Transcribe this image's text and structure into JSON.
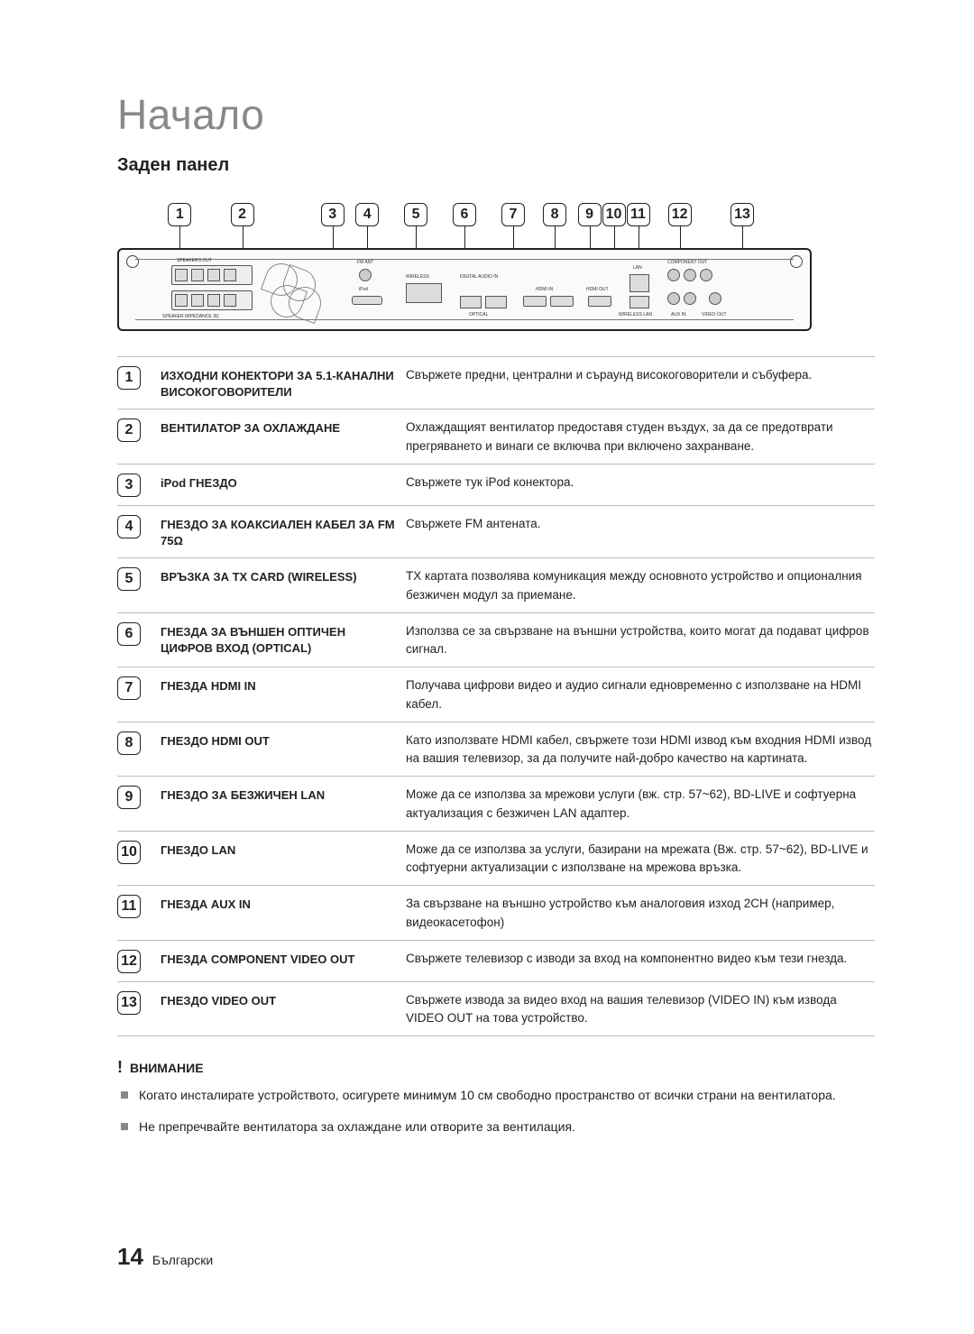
{
  "page": {
    "title": "Начало",
    "section": "Заден панел",
    "page_number": "14",
    "language_label": "Български"
  },
  "colors": {
    "title_color": "#888888",
    "text_color": "#222222",
    "divider_color": "#bdbdbd",
    "box_border": "#222222"
  },
  "diagram": {
    "back_panel_labels": [
      "SPEAKERS OUT",
      "FM ANT",
      "WIRELESS",
      "DIGITAL AUDIO IN",
      "HDMI IN",
      "HDMI OUT",
      "LAN",
      "COMPONENT OUT",
      "WIRELESS LAN",
      "AUX IN",
      "VIDEO OUT",
      "OPTICAL",
      "SPEAKER IMPEDANCE 3Ω",
      "iPod"
    ],
    "callout_numbers": [
      "1",
      "2",
      "3",
      "4",
      "5",
      "6",
      "7",
      "8",
      "9",
      "10",
      "11",
      "12",
      "13"
    ],
    "callout_x_positions_pct": [
      9,
      18,
      31,
      36,
      43,
      50,
      57,
      63,
      68,
      71.5,
      75,
      81,
      90
    ]
  },
  "items": [
    {
      "n": "1",
      "name": "ИЗХОДНИ КОНЕКТОРИ ЗА 5.1-КАНАЛНИ ВИСОКОГОВОРИТЕЛИ",
      "desc": "Свържете предни, централни и съраунд високоговорители и събуфера."
    },
    {
      "n": "2",
      "name": "ВЕНТИЛАТОР ЗА ОХЛАЖДАНЕ",
      "desc": "Охлаждащият вентилатор предоставя студен въздух, за да се предотврати прегряването и винаги се включва при включено захранване."
    },
    {
      "n": "3",
      "name": "iPod ГНЕЗДО",
      "desc": "Свържете тук iPod конектора."
    },
    {
      "n": "4",
      "name": "ГНЕЗДО ЗА КОАКСИАЛЕН КАБЕЛ ЗА FM 75Ω",
      "desc": "Свържете FM антената."
    },
    {
      "n": "5",
      "name": "ВРЪЗКА ЗА TX CARD (WIRELESS)",
      "desc": "TX картата позволява комуникация между основното устройство и опционалния безжичен модул за приемане."
    },
    {
      "n": "6",
      "name": "ГНЕЗДА ЗА ВЪНШЕН ОПТИЧЕН ЦИФРОВ ВХОД (OPTICAL)",
      "desc": "Използва се за свързване на външни устройства, които могат да подават цифров сигнал."
    },
    {
      "n": "7",
      "name": "ГНЕЗДА HDMI IN",
      "desc": "Получава цифрови видео и аудио сигнали едновременно с използване на HDMI кабел."
    },
    {
      "n": "8",
      "name": "ГНЕЗДО HDMI OUT",
      "desc": "Като използвате HDMI кабел, свържете този HDMI извод към входния HDMI извод на вашия телевизор, за да получите най-добро качество на картината."
    },
    {
      "n": "9",
      "name": "ГНЕЗДО ЗА БЕЗЖИЧЕН LAN",
      "desc": "Може да се използва за мрежови услуги (вж. стр. 57~62), BD-LIVE и софтуерна актуализация с безжичен LAN адаптер."
    },
    {
      "n": "10",
      "name": "ГНЕЗДО LAN",
      "desc": "Може да се използва за услуги, базирани на мрежата (Вж. стр. 57~62), BD-LIVE и софтуерни актуализации с използване на мрежова връзка."
    },
    {
      "n": "11",
      "name": "ГНЕЗДА AUX IN",
      "desc": "За свързване на външно устройство към аналоговия изход 2CH (например, видеокасетофон)"
    },
    {
      "n": "12",
      "name": "ГНЕЗДА COMPONENT VIDEO OUT",
      "desc": "Свържете телевизор с изводи за вход на компонентно видео към тези гнезда."
    },
    {
      "n": "13",
      "name": "ГНЕЗДО VIDEO OUT",
      "desc": "Свържете извода за видео вход на вашия телевизор (VIDEO IN) към извода VIDEO OUT на това устройство."
    }
  ],
  "warning": {
    "heading": "ВНИМАНИЕ",
    "bullets": [
      "Когато инсталирате устройството, осигурете минимум 10 см свободно пространство от всички страни на вентилатора.",
      "Не препречвайте вентилатора за охлаждане или отворите за вентилация."
    ]
  }
}
